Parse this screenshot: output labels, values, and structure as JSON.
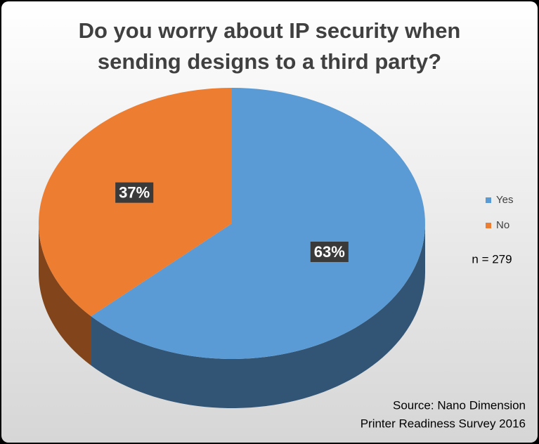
{
  "chart_data": {
    "type": "pie",
    "title": "Do you worry about IP security when sending designs to a third party?",
    "categories": [
      "Yes",
      "No"
    ],
    "values": [
      63,
      37
    ],
    "value_labels": [
      "63%",
      "37%"
    ],
    "colors": [
      "#5b9bd5",
      "#ed7d31"
    ],
    "legend": "right",
    "annotations": [
      "n = 279",
      "Source: Nano Dimension",
      "Printer Readiness Survey 2016"
    ]
  }
}
